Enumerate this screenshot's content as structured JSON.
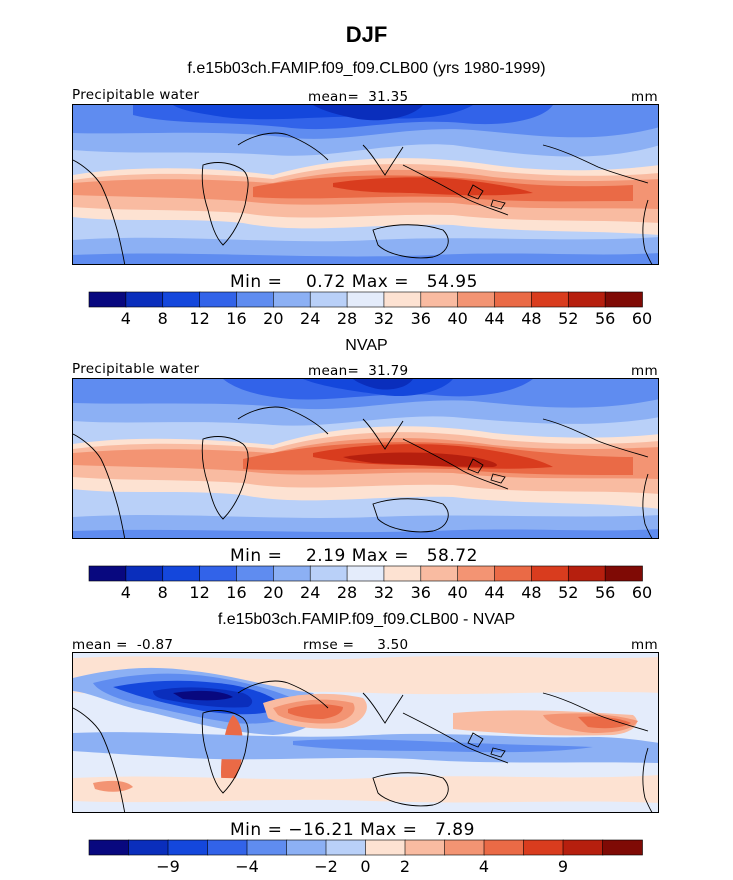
{
  "chart_data": [
    {
      "type": "heatmap",
      "title": "f.e15b03ch.FAMIP.f09_f09.CLB00 (yrs 1980-1999)",
      "variable": "Precipitable water",
      "stat_label": "mean=",
      "stat_value": "31.35",
      "units": "mm",
      "min_label": "Min =",
      "min_value": "0.72",
      "max_label": "Max =",
      "max_value": "54.95",
      "colorbar_ticks": [
        "4",
        "8",
        "12",
        "16",
        "20",
        "24",
        "28",
        "32",
        "36",
        "40",
        "44",
        "48",
        "52",
        "56",
        "60"
      ],
      "colorbar_levels": 15
    },
    {
      "type": "heatmap",
      "title": "NVAP",
      "variable": "Precipitable water",
      "stat_label": "mean=",
      "stat_value": "31.79",
      "units": "mm",
      "min_label": "Min =",
      "min_value": "2.19",
      "max_label": "Max =",
      "max_value": "58.72",
      "colorbar_ticks": [
        "4",
        "8",
        "12",
        "16",
        "20",
        "24",
        "28",
        "32",
        "36",
        "40",
        "44",
        "48",
        "52",
        "56",
        "60"
      ],
      "colorbar_levels": 15
    },
    {
      "type": "heatmap",
      "title": "f.e15b03ch.FAMIP.f09_f09.CLB00 - NVAP",
      "stat_label": "mean =",
      "stat_value": "-0.87",
      "stat2_label": "rmse =",
      "stat2_value": "3.50",
      "units": "mm",
      "min_label": "Min =",
      "min_value": "−16.21",
      "max_label": "Max =",
      "max_value": "7.89",
      "colorbar_ticks": [
        "−9",
        "−4",
        "−2",
        "0",
        "2",
        "4",
        "9"
      ],
      "colorbar_levels": 14
    }
  ],
  "page": {
    "season": "DJF"
  },
  "colors": {
    "palette": [
      "#08087f",
      "#0a2ebc",
      "#1447dc",
      "#3263e9",
      "#5f8cf0",
      "#8cb0f4",
      "#b9d0f8",
      "#e4ecfb",
      "#fde2d2",
      "#f9bba1",
      "#f39473",
      "#ea6a46",
      "#d93c1e",
      "#b61f0e",
      "#7f0a05"
    ]
  }
}
